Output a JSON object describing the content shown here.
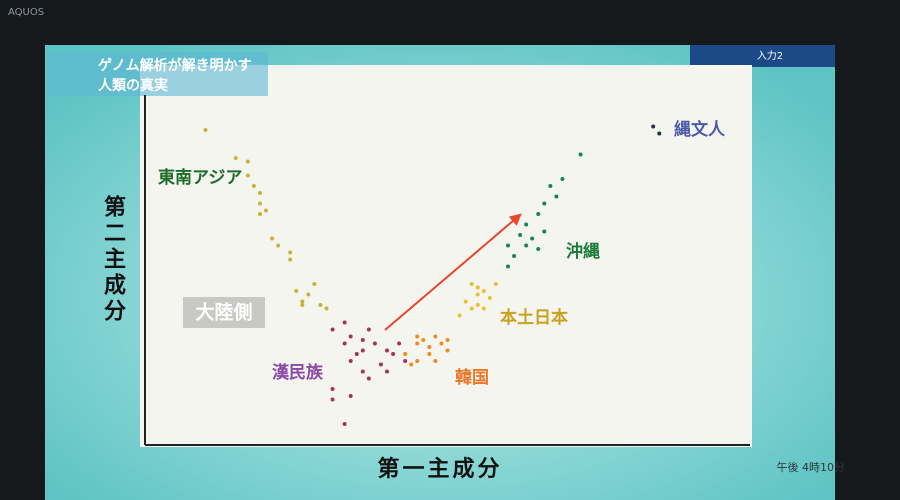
{
  "screen": {
    "brand": "AQUOS",
    "caption": [
      "ゲノム解析が解き明かす",
      "人類の真実"
    ],
    "input": "入力2",
    "clock": "午後 4時10分"
  },
  "chart_data": {
    "type": "scatter",
    "xlabel": "第一主成分",
    "ylabel": "第二主成分",
    "annotation": "大陸側",
    "xlim": [
      0,
      100
    ],
    "ylim": [
      0,
      100
    ],
    "series": [
      {
        "name": "東南アジア",
        "color": "#c9b23a",
        "x": [
          10,
          15,
          17,
          17,
          18,
          19,
          19,
          20,
          19,
          21,
          22,
          24,
          24,
          25,
          26,
          28,
          29,
          26,
          30,
          27
        ],
        "y": [
          90,
          82,
          81,
          77,
          74,
          72,
          69,
          67,
          66,
          59,
          57,
          55,
          53,
          44,
          41,
          46,
          40,
          40,
          39,
          43
        ]
      },
      {
        "name": "漢民族",
        "color": "#a8305e",
        "x": [
          31,
          34,
          36,
          33,
          37,
          35,
          36,
          38,
          40,
          41,
          43,
          39,
          36,
          31,
          34,
          31,
          33,
          37,
          40,
          42,
          34,
          33
        ],
        "y": [
          33,
          31,
          30,
          29,
          33,
          26,
          27,
          29,
          27,
          26,
          24,
          23,
          21,
          16,
          14,
          13,
          6,
          19,
          21,
          29,
          24,
          35
        ]
      },
      {
        "name": "韓国",
        "color": "#ee8a22",
        "x": [
          45,
          46,
          48,
          49,
          47,
          45,
          50,
          44,
          48,
          47,
          45,
          50,
          43
        ],
        "y": [
          29,
          30,
          31,
          29,
          26,
          24,
          27,
          23,
          24,
          28,
          31,
          30,
          26
        ]
      },
      {
        "name": "本土日本",
        "color": "#e8c030",
        "x": [
          53,
          55,
          56,
          54,
          55,
          57,
          52,
          55,
          56,
          58,
          54
        ],
        "y": [
          41,
          43,
          44,
          39,
          40,
          42,
          37,
          45,
          39,
          46,
          46
        ]
      },
      {
        "name": "沖縄",
        "color": "#15855a",
        "x": [
          60,
          61,
          63,
          62,
          64,
          63,
          65,
          66,
          66,
          68,
          69,
          67,
          72,
          65,
          60
        ],
        "y": [
          51,
          54,
          57,
          60,
          59,
          63,
          66,
          69,
          61,
          71,
          76,
          74,
          83,
          56,
          57
        ]
      },
      {
        "name": "縄文人",
        "color": "#24304a",
        "x": [
          84,
          85
        ],
        "y": [
          91,
          89
        ]
      }
    ]
  }
}
